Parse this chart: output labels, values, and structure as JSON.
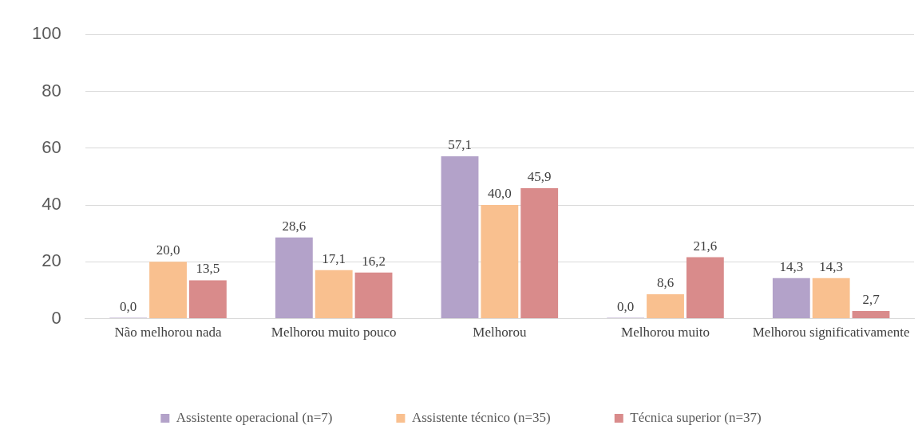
{
  "chart_data": {
    "type": "bar",
    "categories": [
      "Não melhorou nada",
      "Melhorou muito pouco",
      "Melhorou",
      "Melhorou muito",
      "Melhorou significativamente"
    ],
    "series": [
      {
        "name": "Assistente operacional (n=7)",
        "color": "#b3a2c9",
        "values": [
          0.0,
          28.6,
          57.1,
          0.0,
          14.3
        ],
        "value_labels": [
          "0,0",
          "28,6",
          "57,1",
          "0,0",
          "14,3"
        ]
      },
      {
        "name": "Assistente técnico (n=35)",
        "color": "#f9c08f",
        "values": [
          20.0,
          17.1,
          40.0,
          8.6,
          14.3
        ],
        "value_labels": [
          "20,0",
          "17,1",
          "40,0",
          "8,6",
          "14,3"
        ]
      },
      {
        "name": "Técnica superior (n=37)",
        "color": "#d98b8b",
        "values": [
          13.5,
          16.2,
          45.9,
          21.6,
          2.7
        ],
        "value_labels": [
          "13,5",
          "16,2",
          "45,9",
          "21,6",
          "2,7"
        ]
      }
    ],
    "ylim": [
      0,
      100
    ],
    "yticks": [
      0,
      20,
      40,
      60,
      80,
      100
    ],
    "grid": "y",
    "legend": "bottom"
  }
}
